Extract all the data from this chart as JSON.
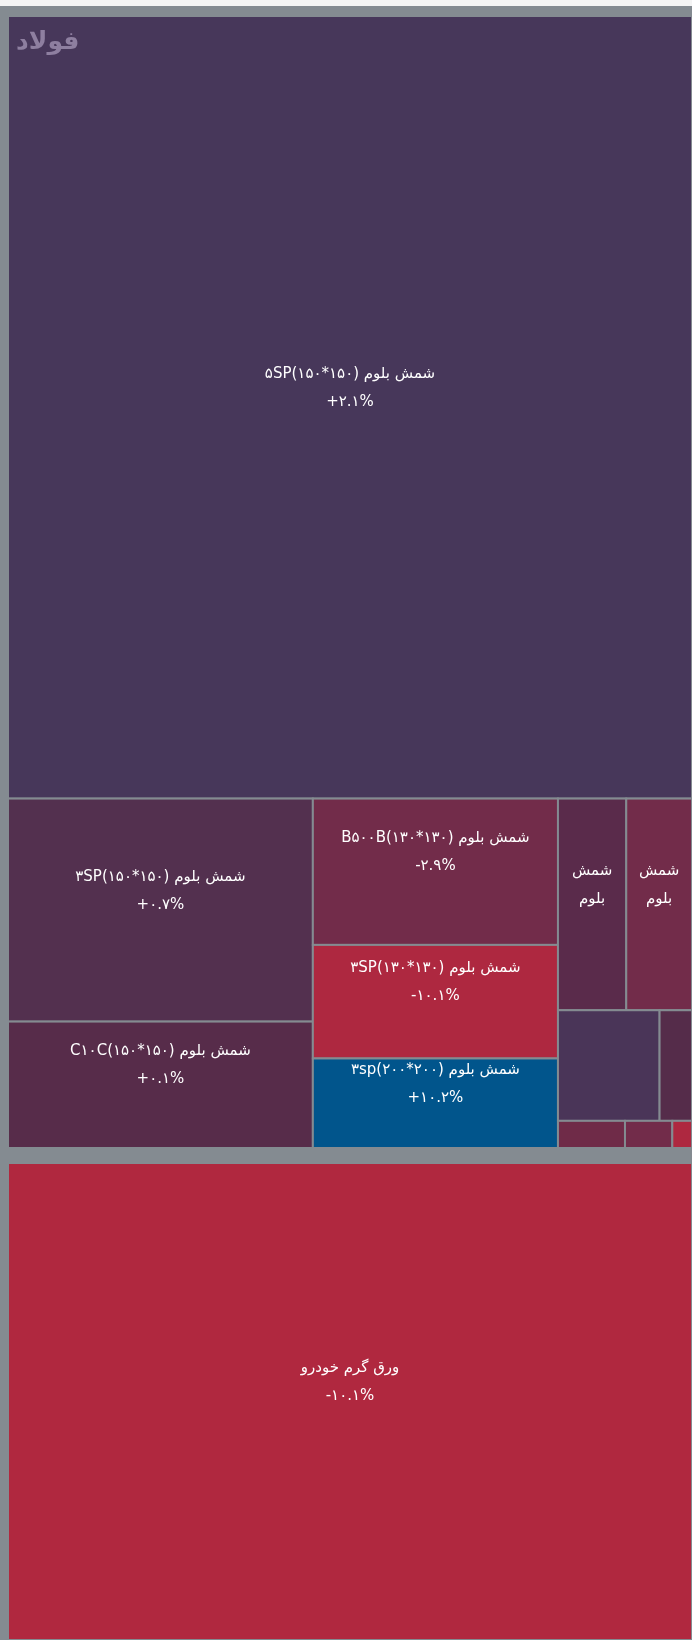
{
  "chart_data": [
    {
      "type": "other",
      "title": "فولاد",
      "data_labels": true,
      "categories": [
        "شمش بلوم (۱۵۰*۱۵۰)۵SP",
        "شمش بلوم (۱۵۰*۱۵۰)۳SP",
        "شمش بلوم (۱۵۰*۱۵۰)C۱۰C",
        "شمش بلوم (۱۳۰*۱۳۰)B۵۰۰B",
        "شمش بلوم (۱۳۰*۱۳۰)۳SP",
        "شمش بلوم (۲۰۰*۲۰۰)۳sp",
        "شمش بلوم",
        "شمش بلوم",
        null,
        null,
        null,
        null,
        null
      ],
      "values": [
        2.1,
        0.7,
        0.1,
        -2.9,
        -10.1,
        10.2,
        null,
        null,
        null,
        null,
        null,
        null,
        null
      ],
      "value_labels": [
        "+۲.۱%",
        "+۰.۷%",
        "+۰.۱%",
        "-۲.۹%",
        "-۱۰.۱%",
        "+۱۰.۲%",
        null,
        null,
        null,
        null,
        null,
        null,
        null
      ],
      "colors": [
        "#47375a",
        "#53304f",
        "#572c4a",
        "#722c4a",
        "#ae2840",
        "#01558c",
        "#5a2b4b",
        "#722c4a",
        "#4a3558",
        "#552c4a",
        "#6f2b48",
        "#722c4a",
        "#ae2840"
      ]
    },
    {
      "type": "other",
      "data_labels": true,
      "categories": [
        "ورق گرم خودرو"
      ],
      "values": [
        -10.1
      ],
      "value_labels": [
        "-۱۰.۱%"
      ],
      "colors": [
        "#b0283f"
      ]
    }
  ]
}
